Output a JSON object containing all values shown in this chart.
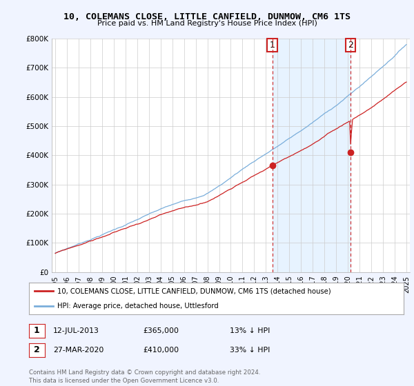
{
  "title": "10, COLEMANS CLOSE, LITTLE CANFIELD, DUNMOW, CM6 1TS",
  "subtitle": "Price paid vs. HM Land Registry's House Price Index (HPI)",
  "ylim": [
    0,
    800000
  ],
  "yticks": [
    0,
    100000,
    200000,
    300000,
    400000,
    500000,
    600000,
    700000,
    800000
  ],
  "ytick_labels": [
    "£0",
    "£100K",
    "£200K",
    "£300K",
    "£400K",
    "£500K",
    "£600K",
    "£700K",
    "£800K"
  ],
  "x_start_year": 1995,
  "x_end_year": 2025,
  "hpi_color": "#7aaedb",
  "price_color": "#cc2222",
  "background_color": "#f0f4ff",
  "plot_bg_color": "#ffffff",
  "shade_color": "#ddeeff",
  "legend_entries": [
    "10, COLEMANS CLOSE, LITTLE CANFIELD, DUNMOW, CM6 1TS (detached house)",
    "HPI: Average price, detached house, Uttlesford"
  ],
  "sale1_year": 2013.54,
  "sale1_price": 365000,
  "sale2_year": 2020.23,
  "sale2_price": 410000,
  "annotation1": {
    "label": "1",
    "date": "12-JUL-2013",
    "price": "£365,000",
    "hpi_rel": "13% ↓ HPI"
  },
  "annotation2": {
    "label": "2",
    "date": "27-MAR-2020",
    "price": "£410,000",
    "hpi_rel": "33% ↓ HPI"
  },
  "footer": "Contains HM Land Registry data © Crown copyright and database right 2024.\nThis data is licensed under the Open Government Licence v3.0."
}
